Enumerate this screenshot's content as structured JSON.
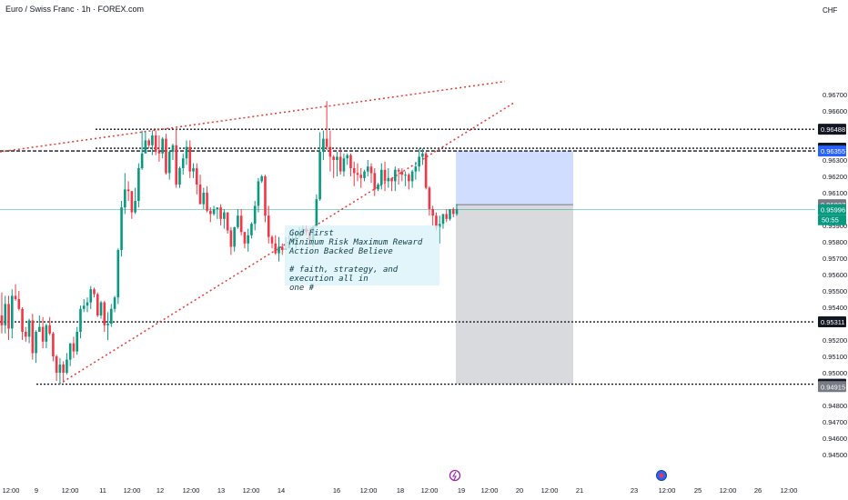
{
  "header": {
    "symbol_title": "Euro / Swiss Franc · 1h · FOREX.com",
    "currency": "CHF"
  },
  "annotation": {
    "text": "God First\nMinimum Risk Maximum Reward\nAction Backed Believe\n\n# faith, strategy, and execution all in\none #"
  },
  "chart_data": {
    "type": "candlestick",
    "title": "Euro / Swiss Franc · 1h · FOREX.com",
    "ylim": [
      0.9445,
      0.9683
    ],
    "y_ticks": [
      0.967,
      0.966,
      0.963,
      0.962,
      0.961,
      0.959,
      0.958,
      0.957,
      0.956,
      0.955,
      0.954,
      0.952,
      0.951,
      0.95,
      0.948,
      0.947,
      0.946,
      0.945
    ],
    "x_ticks": [
      "12:00",
      "9",
      "12:00",
      "11",
      "12:00",
      "12",
      "12:00",
      "13",
      "12:00",
      "14",
      "16",
      "12:00",
      "18",
      "12:00",
      "19",
      "12:00",
      "20",
      "12:00",
      "21",
      "23",
      "12:00",
      "25",
      "12:00",
      "26",
      "12:00"
    ],
    "levels": [
      {
        "label": "0.96488",
        "value": 0.96488,
        "style": "dotted"
      },
      {
        "label": "0.96372",
        "value": 0.96372,
        "style": "dotted"
      },
      {
        "label": "0.96355",
        "value": 0.96355,
        "style": "dashed",
        "color": "#2962ff"
      },
      {
        "label": "0.95311",
        "value": 0.95311,
        "style": "dotted"
      },
      {
        "label": "0.94930",
        "value": 0.9493,
        "style": "dotted"
      }
    ],
    "price_labels": [
      {
        "label": "0.96027",
        "value": 0.96027,
        "color": "#787b86"
      },
      {
        "label": "0.95996",
        "sublabel": "50:55",
        "value": 0.95996,
        "color": "#089981"
      },
      {
        "label": "0.94915",
        "value": 0.94915,
        "color": "#787b86"
      }
    ],
    "position": {
      "type": "long",
      "entry": 0.96027,
      "target": 0.96355,
      "stop": 0.9493
    },
    "trendlines": [
      {
        "name": "upper-channel",
        "from": [
          0,
          0.9635
        ],
        "to": [
          555,
          0.9678
        ],
        "color": "#e53935"
      },
      {
        "name": "lower-channel",
        "from": [
          65,
          0.9493
        ],
        "to": [
          565,
          0.9665
        ],
        "color": "#e53935"
      }
    ],
    "candles": [
      [
        0.9535,
        0.9529,
        0.9549,
        0.9524
      ],
      [
        0.9529,
        0.9542,
        0.9547,
        0.9524
      ],
      [
        0.9542,
        0.9527,
        0.9547,
        0.952
      ],
      [
        0.9527,
        0.9547,
        0.9551,
        0.9521
      ],
      [
        0.9547,
        0.9545,
        0.9554,
        0.9544
      ],
      [
        0.9545,
        0.9539,
        0.955,
        0.9538
      ],
      [
        0.9539,
        0.9525,
        0.954,
        0.952
      ],
      [
        0.9525,
        0.9522,
        0.9528,
        0.9519
      ],
      [
        0.9522,
        0.9532,
        0.9533,
        0.9518
      ],
      [
        0.9532,
        0.9512,
        0.9536,
        0.9508
      ],
      [
        0.9512,
        0.9525,
        0.9526,
        0.9506
      ],
      [
        0.9525,
        0.9528,
        0.9535,
        0.9525
      ],
      [
        0.9528,
        0.9519,
        0.9534,
        0.9515
      ],
      [
        0.9519,
        0.9529,
        0.953,
        0.9515
      ],
      [
        0.9529,
        0.9524,
        0.9534,
        0.9523
      ],
      [
        0.9524,
        0.951,
        0.9525,
        0.9507
      ],
      [
        0.951,
        0.95,
        0.9511,
        0.9495
      ],
      [
        0.95,
        0.9505,
        0.9509,
        0.9493
      ],
      [
        0.9505,
        0.95,
        0.9507,
        0.9494
      ],
      [
        0.95,
        0.9508,
        0.9512,
        0.9499
      ],
      [
        0.9508,
        0.9518,
        0.9518,
        0.9504
      ],
      [
        0.9518,
        0.9513,
        0.9522,
        0.9509
      ],
      [
        0.9513,
        0.9525,
        0.9528,
        0.9511
      ],
      [
        0.9525,
        0.9539,
        0.9541,
        0.9521
      ],
      [
        0.9539,
        0.9541,
        0.9545,
        0.9537
      ],
      [
        0.9541,
        0.9543,
        0.9546,
        0.9537
      ],
      [
        0.9543,
        0.9551,
        0.9553,
        0.9539
      ],
      [
        0.9551,
        0.9548,
        0.9552,
        0.9546
      ],
      [
        0.9548,
        0.9535,
        0.9549,
        0.9534
      ],
      [
        0.9535,
        0.9543,
        0.9544,
        0.9533
      ],
      [
        0.9543,
        0.9529,
        0.9544,
        0.9525
      ],
      [
        0.9529,
        0.953,
        0.9537,
        0.952
      ],
      [
        0.953,
        0.9539,
        0.9542,
        0.9528
      ],
      [
        0.9539,
        0.9546,
        0.9547,
        0.9537
      ],
      [
        0.9546,
        0.9575,
        0.9576,
        0.9542
      ],
      [
        0.9575,
        0.9601,
        0.9605,
        0.9571
      ],
      [
        0.9601,
        0.9612,
        0.9622,
        0.9597
      ],
      [
        0.9612,
        0.9611,
        0.9617,
        0.9605
      ],
      [
        0.9611,
        0.9598,
        0.9611,
        0.9594
      ],
      [
        0.9598,
        0.9605,
        0.9613,
        0.9597
      ],
      [
        0.9605,
        0.9625,
        0.9628,
        0.9601
      ],
      [
        0.9625,
        0.9634,
        0.9648,
        0.9624
      ],
      [
        0.9634,
        0.9642,
        0.9648,
        0.9637
      ],
      [
        0.9642,
        0.9639,
        0.9643,
        0.9637
      ],
      [
        0.9639,
        0.9645,
        0.9648,
        0.9633
      ],
      [
        0.9645,
        0.9635,
        0.9648,
        0.9633
      ],
      [
        0.9635,
        0.9634,
        0.9645,
        0.9629
      ],
      [
        0.9634,
        0.9643,
        0.9644,
        0.9631
      ],
      [
        0.9643,
        0.9622,
        0.9646,
        0.9621
      ],
      [
        0.9622,
        0.9635,
        0.9636,
        0.9618
      ],
      [
        0.9635,
        0.9639,
        0.964,
        0.963
      ],
      [
        0.9639,
        0.9615,
        0.9649,
        0.9613
      ],
      [
        0.9615,
        0.9625,
        0.9626,
        0.9613
      ],
      [
        0.9625,
        0.9631,
        0.9634,
        0.9621
      ],
      [
        0.9631,
        0.9638,
        0.9642,
        0.9627
      ],
      [
        0.9638,
        0.9623,
        0.9642,
        0.9619
      ],
      [
        0.9623,
        0.9625,
        0.9628,
        0.9619
      ],
      [
        0.9625,
        0.9615,
        0.9628,
        0.9609
      ],
      [
        0.9615,
        0.9603,
        0.9621,
        0.9603
      ],
      [
        0.9603,
        0.961,
        0.9613,
        0.96
      ],
      [
        0.961,
        0.9599,
        0.9614,
        0.9598
      ],
      [
        0.9599,
        0.9597,
        0.9601,
        0.9592
      ],
      [
        0.9597,
        0.96,
        0.9602,
        0.9596
      ],
      [
        0.96,
        0.9601,
        0.9601,
        0.9594
      ],
      [
        0.9601,
        0.9594,
        0.9603,
        0.959
      ],
      [
        0.9594,
        0.9598,
        0.96,
        0.9588
      ],
      [
        0.9598,
        0.9587,
        0.9598,
        0.9585
      ],
      [
        0.9587,
        0.9577,
        0.9589,
        0.9572
      ],
      [
        0.9577,
        0.9589,
        0.9589,
        0.9574
      ],
      [
        0.9589,
        0.9596,
        0.96,
        0.9588
      ],
      [
        0.9596,
        0.9586,
        0.96,
        0.9584
      ],
      [
        0.9586,
        0.9579,
        0.9586,
        0.9576
      ],
      [
        0.9579,
        0.9584,
        0.9588,
        0.9574
      ],
      [
        0.9584,
        0.9591,
        0.9592,
        0.9582
      ],
      [
        0.9591,
        0.9602,
        0.9605,
        0.9587
      ],
      [
        0.9602,
        0.9617,
        0.9619,
        0.9598
      ],
      [
        0.9617,
        0.962,
        0.9621,
        0.9616
      ],
      [
        0.962,
        0.9596,
        0.9621,
        0.9592
      ],
      [
        0.9596,
        0.9583,
        0.9602,
        0.9579
      ],
      [
        0.9583,
        0.9579,
        0.9584,
        0.9576
      ],
      [
        0.9579,
        0.9573,
        0.9584,
        0.9572
      ],
      [
        0.9573,
        0.9577,
        0.9583,
        0.9568
      ],
      [
        0.9577,
        0.9575,
        0.9579,
        0.9572
      ],
      [
        0.9575,
        0.9576,
        0.9583,
        0.9575
      ],
      [
        0.9576,
        0.958,
        0.9584,
        0.9576
      ],
      [
        0.958,
        0.9581,
        0.9588,
        0.9579
      ],
      [
        0.9581,
        0.9583,
        0.9587,
        0.9576
      ],
      [
        0.9583,
        0.9585,
        0.9589,
        0.9584
      ],
      [
        0.9585,
        0.9588,
        0.959,
        0.9585
      ],
      [
        0.9588,
        0.9586,
        0.959,
        0.9584
      ],
      [
        0.9586,
        0.9581,
        0.9588,
        0.9578
      ],
      [
        0.9581,
        0.9589,
        0.959,
        0.9577
      ],
      [
        0.9589,
        0.9606,
        0.9609,
        0.9589
      ],
      [
        0.9606,
        0.9635,
        0.9647,
        0.9605
      ],
      [
        0.9635,
        0.9643,
        0.9648,
        0.963
      ],
      [
        0.9643,
        0.9638,
        0.9666,
        0.9636
      ],
      [
        0.9638,
        0.9632,
        0.9648,
        0.9623
      ],
      [
        0.9632,
        0.963,
        0.9633,
        0.9619
      ],
      [
        0.963,
        0.9632,
        0.9635,
        0.962
      ],
      [
        0.9632,
        0.9623,
        0.9637,
        0.9621
      ],
      [
        0.9623,
        0.9631,
        0.9634,
        0.962
      ],
      [
        0.9631,
        0.9633,
        0.9634,
        0.9627
      ],
      [
        0.9633,
        0.9625,
        0.9634,
        0.962
      ],
      [
        0.9625,
        0.9622,
        0.9629,
        0.9614
      ],
      [
        0.9622,
        0.9621,
        0.9628,
        0.9617
      ],
      [
        0.9621,
        0.9619,
        0.9625,
        0.9613
      ],
      [
        0.9619,
        0.9623,
        0.9624,
        0.9617
      ],
      [
        0.9623,
        0.9626,
        0.963,
        0.962
      ],
      [
        0.9626,
        0.9622,
        0.9628,
        0.9616
      ],
      [
        0.9622,
        0.9612,
        0.9625,
        0.9608
      ],
      [
        0.9612,
        0.9615,
        0.9616,
        0.9611
      ],
      [
        0.9615,
        0.9624,
        0.9628,
        0.9612
      ],
      [
        0.9624,
        0.9617,
        0.9629,
        0.9611
      ],
      [
        0.9617,
        0.9619,
        0.9625,
        0.9613
      ],
      [
        0.9619,
        0.9617,
        0.9619,
        0.9611
      ],
      [
        0.9617,
        0.9624,
        0.9626,
        0.9611
      ],
      [
        0.9624,
        0.9623,
        0.9625,
        0.9615
      ],
      [
        0.9623,
        0.9621,
        0.9625,
        0.9617
      ],
      [
        0.9621,
        0.9621,
        0.9623,
        0.9614
      ],
      [
        0.9621,
        0.9617,
        0.9622,
        0.9612
      ],
      [
        0.9617,
        0.9623,
        0.9624,
        0.9613
      ],
      [
        0.9623,
        0.9626,
        0.9629,
        0.9618
      ],
      [
        0.9626,
        0.9632,
        0.9637,
        0.9623
      ],
      [
        0.9632,
        0.9634,
        0.9637,
        0.9627
      ],
      [
        0.9634,
        0.9613,
        0.9635,
        0.9612
      ],
      [
        0.9613,
        0.96,
        0.9614,
        0.9596
      ],
      [
        0.96,
        0.9596,
        0.9602,
        0.959
      ],
      [
        0.9596,
        0.9589,
        0.9598,
        0.9587
      ],
      [
        0.9589,
        0.9591,
        0.9596,
        0.9579
      ],
      [
        0.9591,
        0.9597,
        0.9597,
        0.9588
      ],
      [
        0.9597,
        0.9594,
        0.96,
        0.9592
      ],
      [
        0.9594,
        0.96,
        0.96,
        0.9593
      ],
      [
        0.96,
        0.9597,
        0.9601,
        0.9595
      ],
      [
        0.9597,
        0.96,
        0.9603,
        0.9596
      ]
    ]
  }
}
